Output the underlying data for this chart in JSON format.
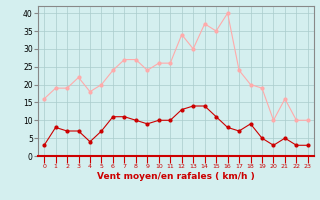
{
  "hours": [
    0,
    1,
    2,
    3,
    4,
    5,
    6,
    7,
    8,
    9,
    10,
    11,
    12,
    13,
    14,
    15,
    16,
    17,
    18,
    19,
    20,
    21,
    22,
    23
  ],
  "wind_avg": [
    3,
    8,
    7,
    7,
    4,
    7,
    11,
    11,
    10,
    9,
    10,
    10,
    13,
    14,
    14,
    11,
    8,
    7,
    9,
    5,
    3,
    5,
    3,
    3
  ],
  "wind_gust": [
    16,
    19,
    19,
    22,
    18,
    20,
    24,
    27,
    27,
    24,
    26,
    26,
    34,
    30,
    37,
    35,
    40,
    24,
    20,
    19,
    10,
    16,
    10,
    10
  ],
  "avg_color": "#cc0000",
  "gust_color": "#ffaaaa",
  "bg_color": "#d4efef",
  "grid_color": "#aacccc",
  "xlabel": "Vent moyen/en rafales ( km/h )",
  "xlabel_color": "#cc0000",
  "ylabel_ticks": [
    0,
    5,
    10,
    15,
    20,
    25,
    30,
    35,
    40
  ],
  "ylim": [
    0,
    42
  ],
  "xlim": [
    -0.5,
    23.5
  ],
  "spine_color": "#888888",
  "bottom_spine_color": "#cc0000"
}
